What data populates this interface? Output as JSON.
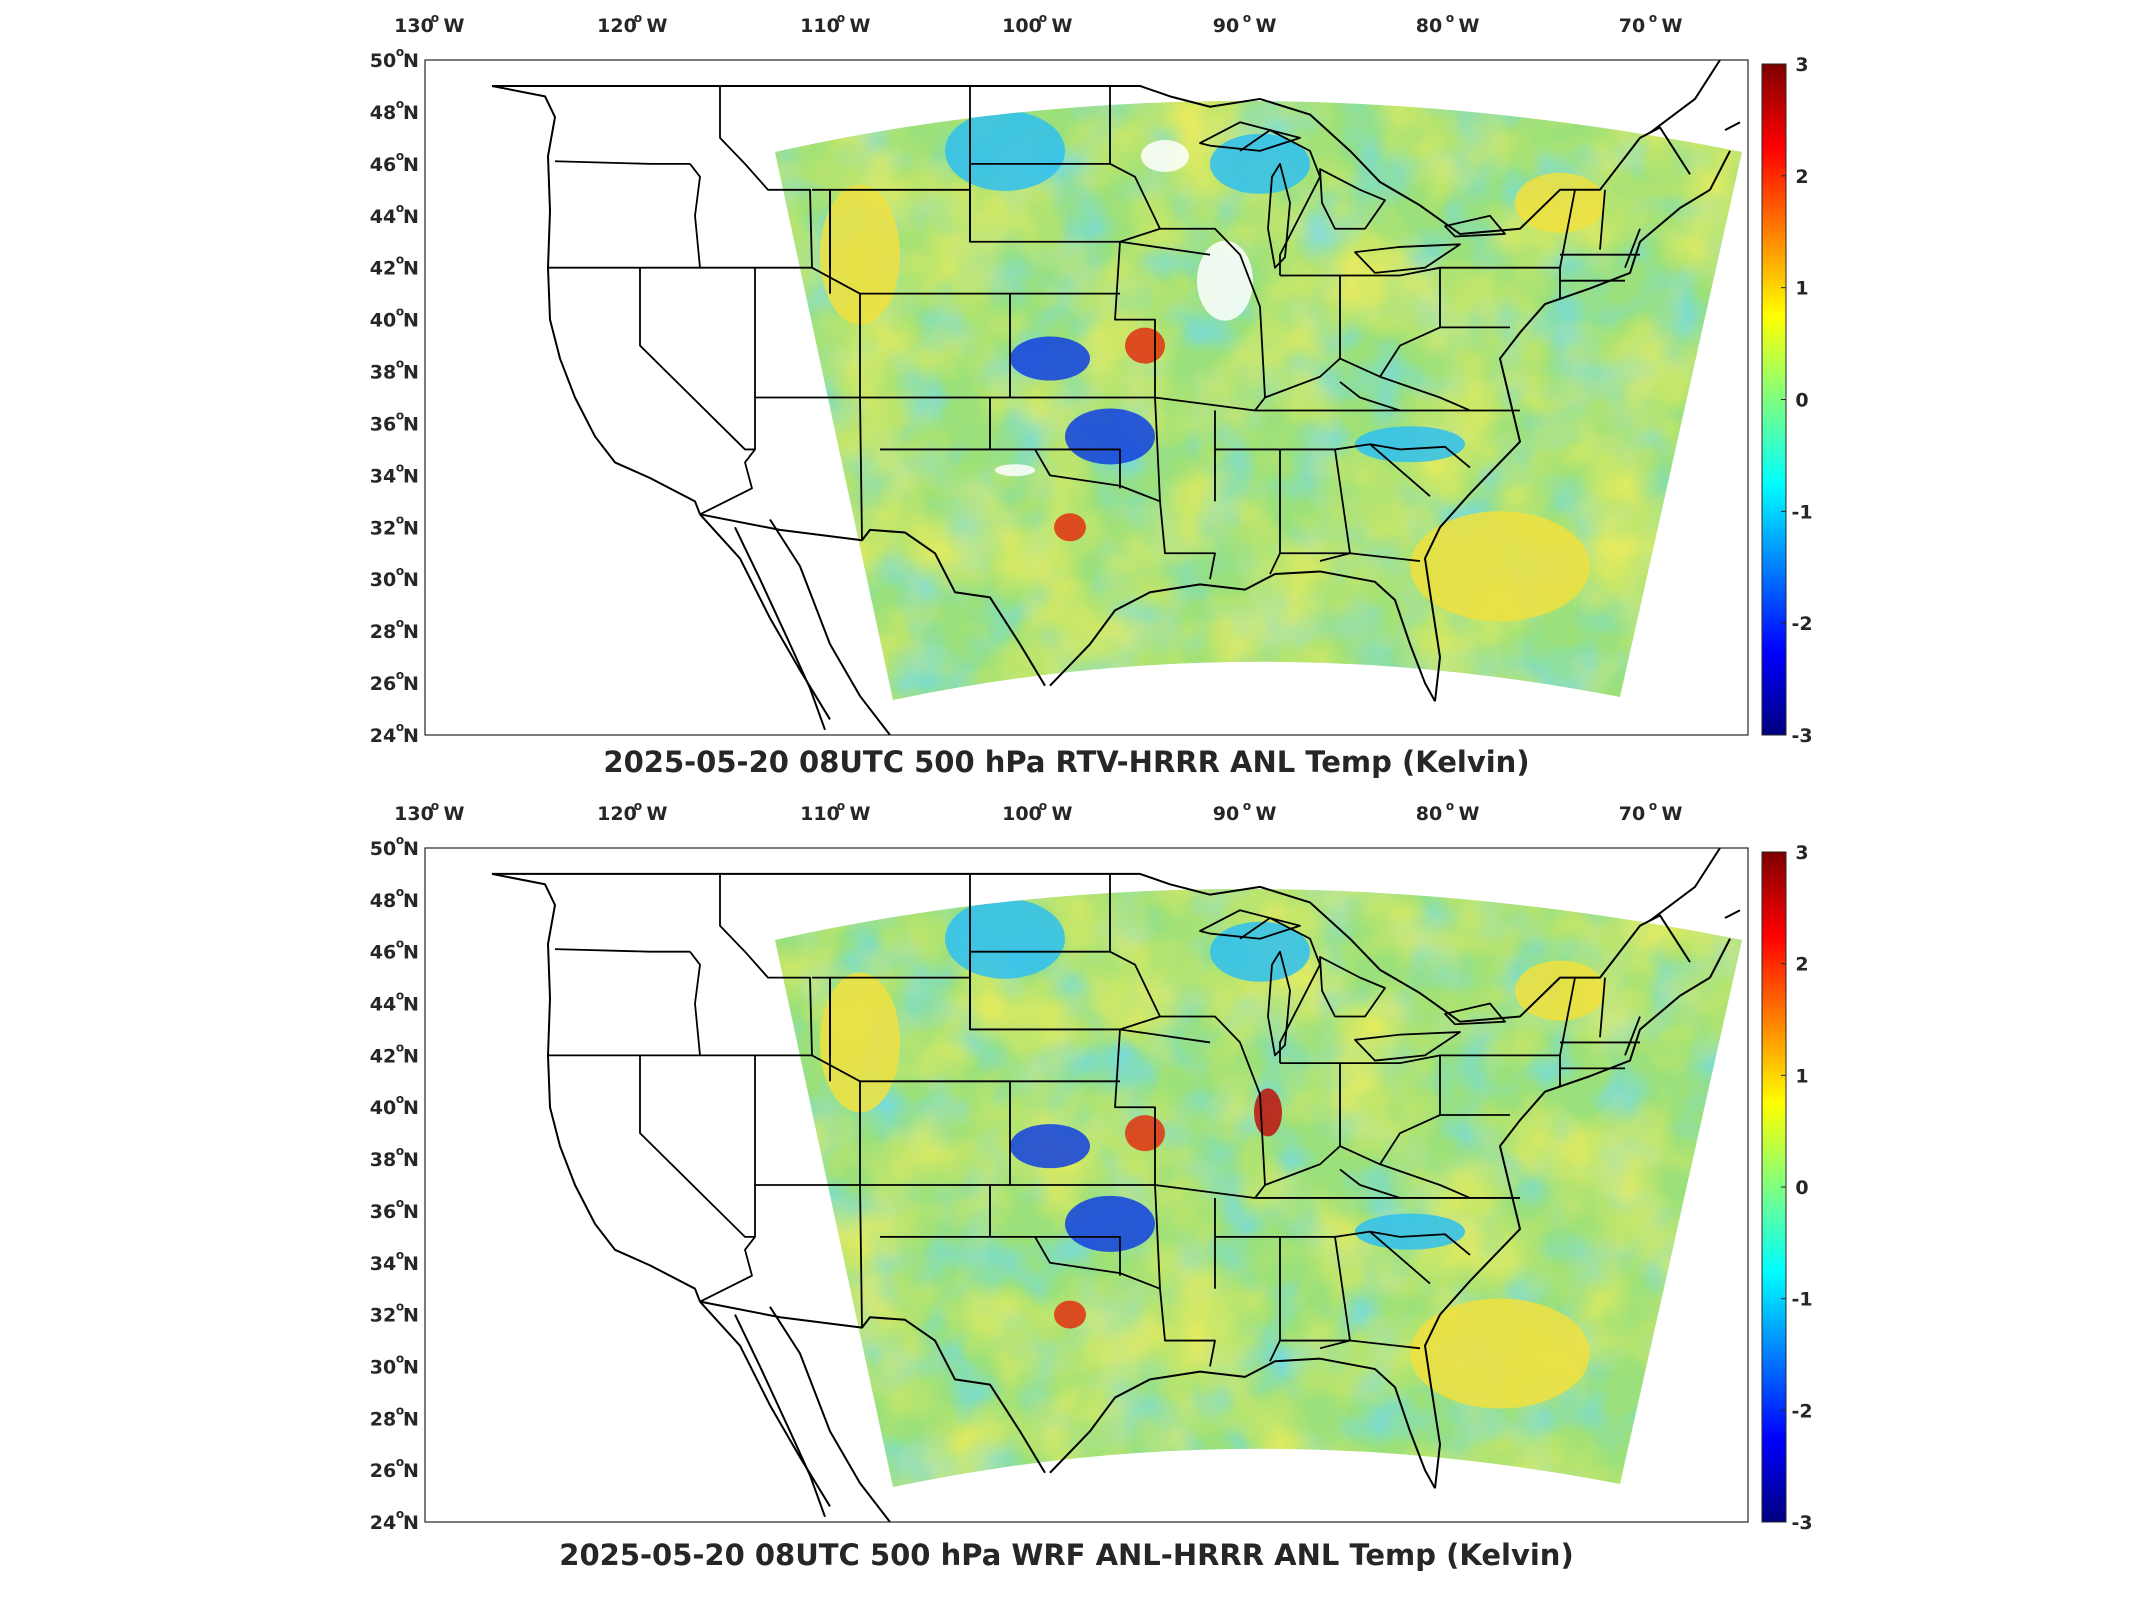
{
  "panels": [
    {
      "id": "top",
      "title": "2025-05-20 08UTC 500 hPa RTV-HRRR ANL Temp (Kelvin)",
      "lon_ticks": [
        "130",
        "120",
        "110",
        "100",
        "90",
        "80",
        "70"
      ],
      "lon_suffix": "W",
      "lat_ticks": [
        "50",
        "48",
        "46",
        "44",
        "42",
        "40",
        "38",
        "36",
        "34",
        "32",
        "30",
        "28",
        "26",
        "24"
      ],
      "lat_suffix": "N",
      "colorbar_ticks": [
        "3",
        "2",
        "1",
        "0",
        "-1",
        "-2",
        "-3"
      ]
    },
    {
      "id": "bottom",
      "title": "2025-05-20 08UTC 500 hPa WRF ANL-HRRR ANL Temp (Kelvin)",
      "lon_ticks": [
        "130",
        "120",
        "110",
        "100",
        "90",
        "80",
        "70"
      ],
      "lon_suffix": "W",
      "lat_ticks": [
        "50",
        "48",
        "46",
        "44",
        "42",
        "40",
        "38",
        "36",
        "34",
        "32",
        "30",
        "28",
        "26",
        "24"
      ],
      "lat_suffix": "N",
      "colorbar_ticks": [
        "3",
        "2",
        "1",
        "0",
        "-1",
        "-2",
        "-3"
      ]
    }
  ],
  "colormap": {
    "name": "jet",
    "range": [
      -3,
      3
    ],
    "stops": [
      "#00007f",
      "#0000ff",
      "#007fff",
      "#00ffff",
      "#7fff7f",
      "#ffff00",
      "#ff7f00",
      "#ff0000",
      "#7f0000"
    ]
  },
  "field_colors": {
    "background": "#9be07a",
    "cool": "#2fc0f0",
    "warm": "#f0e040",
    "blue": "#1040e0",
    "red": "#e03010",
    "missing": "#ffffff"
  }
}
